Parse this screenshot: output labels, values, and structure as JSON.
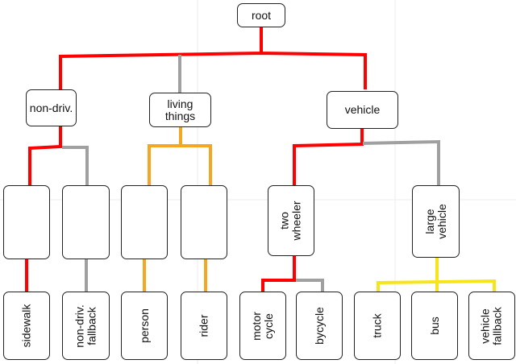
{
  "colors": {
    "red": "#ff0000",
    "gray": "#a0a0a0",
    "orange": "#f5a623",
    "yellow": "#f7e51c"
  },
  "nodes": {
    "root": "root",
    "non_driv": "non-driv.",
    "living": "living\nthings",
    "vehicle": "vehicle",
    "two_wheeler": "two\nwheeler",
    "large_vehicle": "large\nvehicle",
    "sidewalk": "sidewalk",
    "non_driv_fallback": "non-driv.\nfallback",
    "person": "person",
    "rider": "rider",
    "motorcycle": "motor\ncycle",
    "bycycle": "bycycle",
    "truck": "truck",
    "bus": "bus",
    "vehicle_fallback": "vehicle\nfallback"
  }
}
